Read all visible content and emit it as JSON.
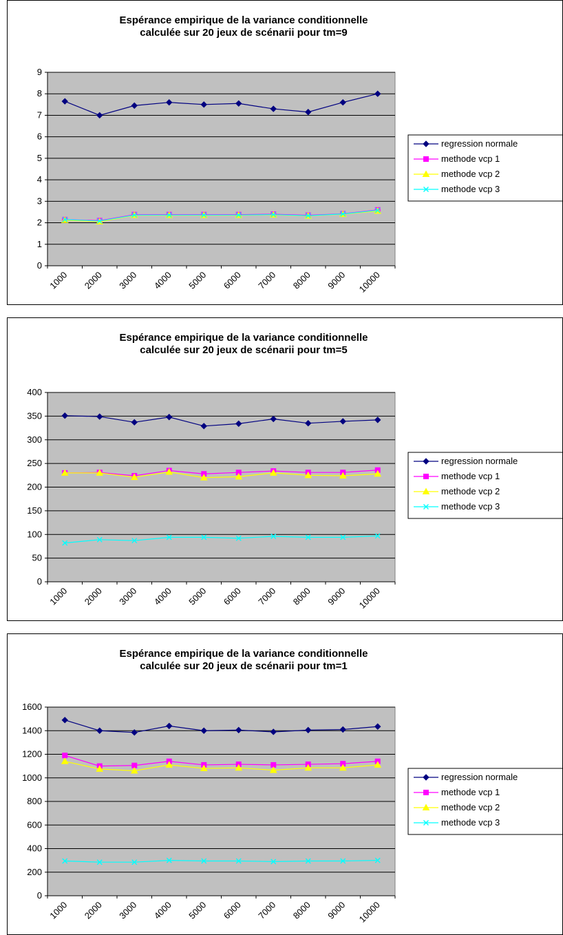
{
  "chart_data": [
    {
      "type": "line",
      "title": "Espérance empirique de la variance conditionnelle",
      "subtitle": "calculée sur 20 jeux de scénarii pour tm=9",
      "categories": [
        "1000",
        "2000",
        "3000",
        "4000",
        "5000",
        "6000",
        "7000",
        "8000",
        "9000",
        "10000"
      ],
      "ylim": [
        0,
        9
      ],
      "ytick_step": 1,
      "yticks": [
        "0",
        "1",
        "2",
        "3",
        "4",
        "5",
        "6",
        "7",
        "8",
        "9"
      ],
      "grid": true,
      "legend_position": "right",
      "plot_background": "#c0c0c0",
      "series": [
        {
          "name": "regression normale",
          "color": "#000080",
          "marker": "diamond",
          "values": [
            7.65,
            7.0,
            7.45,
            7.6,
            7.5,
            7.55,
            7.3,
            7.15,
            7.6,
            8.0
          ]
        },
        {
          "name": "methode vcp 1",
          "color": "#ff00ff",
          "marker": "square",
          "values": [
            2.15,
            2.1,
            2.38,
            2.38,
            2.38,
            2.38,
            2.4,
            2.35,
            2.42,
            2.6
          ]
        },
        {
          "name": "methode vcp 2",
          "color": "#ffff00",
          "marker": "triangle",
          "values": [
            2.12,
            2.05,
            2.35,
            2.35,
            2.35,
            2.35,
            2.37,
            2.32,
            2.4,
            2.55
          ]
        },
        {
          "name": "methode vcp 3",
          "color": "#00ffff",
          "marker": "x",
          "values": [
            2.15,
            2.08,
            2.36,
            2.36,
            2.36,
            2.36,
            2.38,
            2.33,
            2.41,
            2.58
          ]
        }
      ]
    },
    {
      "type": "line",
      "title": "Espérance empirique de la variance conditionnelle",
      "subtitle": "calculée sur 20 jeux de scénarii pour tm=5",
      "categories": [
        "1000",
        "2000",
        "3000",
        "4000",
        "5000",
        "6000",
        "7000",
        "8000",
        "9000",
        "10000"
      ],
      "ylim": [
        0,
        400
      ],
      "ytick_step": 50,
      "yticks": [
        "0",
        "50",
        "100",
        "150",
        "200",
        "250",
        "300",
        "350",
        "400"
      ],
      "grid": true,
      "legend_position": "right",
      "plot_background": "#c0c0c0",
      "series": [
        {
          "name": "regression normale",
          "color": "#000080",
          "marker": "diamond",
          "values": [
            351,
            349,
            337,
            348,
            329,
            334,
            344,
            335,
            339,
            342
          ]
        },
        {
          "name": "methode vcp 1",
          "color": "#ff00ff",
          "marker": "square",
          "values": [
            230,
            231,
            224,
            235,
            228,
            231,
            234,
            231,
            231,
            236
          ]
        },
        {
          "name": "methode vcp 2",
          "color": "#ffff00",
          "marker": "triangle",
          "values": [
            230,
            230,
            221,
            232,
            220,
            222,
            230,
            225,
            224,
            228
          ]
        },
        {
          "name": "methode vcp 3",
          "color": "#00ffff",
          "marker": "x",
          "values": [
            82,
            89,
            87,
            94,
            94,
            92,
            96,
            94,
            94,
            97
          ]
        }
      ]
    },
    {
      "type": "line",
      "title": "Espérance empirique de la variance conditionnelle",
      "subtitle": "calculée sur 20 jeux de scénarii pour tm=1",
      "categories": [
        "1000",
        "2000",
        "3000",
        "4000",
        "5000",
        "6000",
        "7000",
        "8000",
        "9000",
        "10000"
      ],
      "ylim": [
        0,
        1600
      ],
      "ytick_step": 200,
      "yticks": [
        "0",
        "200",
        "400",
        "600",
        "800",
        "1000",
        "1200",
        "1400",
        "1600"
      ],
      "grid": true,
      "legend_position": "right",
      "plot_background": "#c0c0c0",
      "series": [
        {
          "name": "regression normale",
          "color": "#000080",
          "marker": "diamond",
          "values": [
            1490,
            1400,
            1385,
            1440,
            1400,
            1405,
            1390,
            1405,
            1410,
            1435
          ]
        },
        {
          "name": "methode vcp 1",
          "color": "#ff00ff",
          "marker": "square",
          "values": [
            1190,
            1100,
            1105,
            1140,
            1110,
            1115,
            1110,
            1115,
            1120,
            1140
          ]
        },
        {
          "name": "methode vcp 2",
          "color": "#ffff00",
          "marker": "triangle",
          "values": [
            1140,
            1075,
            1060,
            1110,
            1080,
            1085,
            1065,
            1085,
            1085,
            1110
          ]
        },
        {
          "name": "methode vcp 3",
          "color": "#00ffff",
          "marker": "x",
          "values": [
            295,
            285,
            285,
            300,
            295,
            295,
            290,
            295,
            295,
            300
          ]
        }
      ]
    }
  ]
}
